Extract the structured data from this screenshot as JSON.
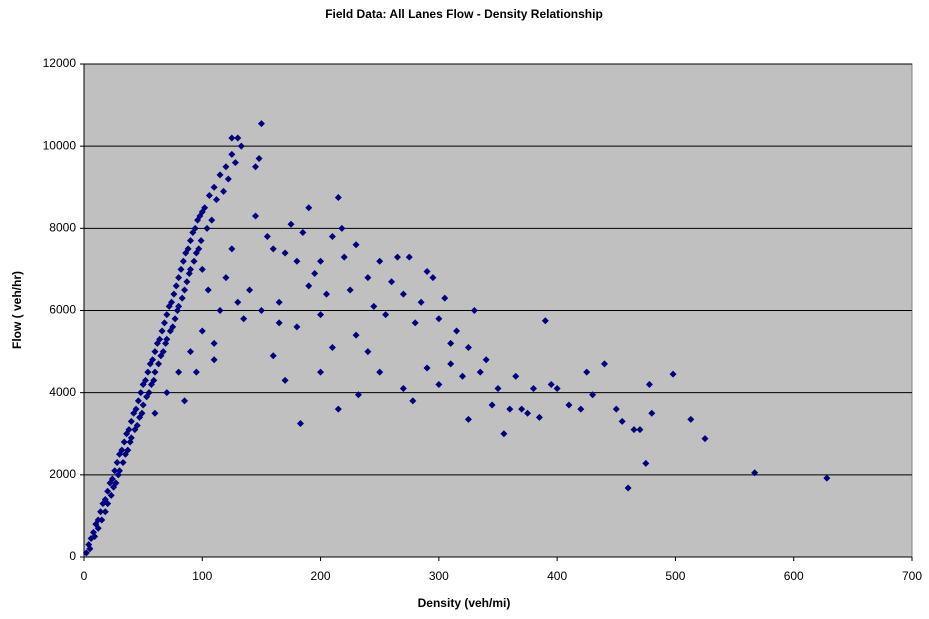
{
  "chart_data": {
    "type": "scatter",
    "title": "Field Data: All Lanes Flow - Density Relationship",
    "x_label": "Density (veh/mi)",
    "y_label": "Flow ( veh/hr)",
    "xlim": [
      0,
      700
    ],
    "xticks": [
      0,
      100,
      200,
      300,
      400,
      500,
      600,
      700
    ],
    "ylim": [
      0,
      12000
    ],
    "yticks": [
      0,
      2000,
      4000,
      6000,
      8000,
      10000,
      12000
    ],
    "grid": true,
    "background": "#c0c0c0",
    "series": [
      {
        "color": "#000080",
        "x": [
          2,
          4,
          5,
          6,
          8,
          9,
          10,
          12,
          12,
          14,
          15,
          16,
          18,
          18,
          20,
          20,
          22,
          23,
          24,
          25,
          26,
          27,
          28,
          29,
          30,
          30,
          32,
          33,
          34,
          35,
          36,
          37,
          38,
          39,
          40,
          40,
          42,
          43,
          44,
          45,
          46,
          47,
          48,
          49,
          50,
          50,
          52,
          53,
          54,
          55,
          56,
          57,
          58,
          59,
          60,
          60,
          62,
          63,
          64,
          65,
          66,
          67,
          68,
          69,
          70,
          70,
          72,
          73,
          74,
          75,
          76,
          77,
          78,
          79,
          80,
          80,
          82,
          83,
          84,
          85,
          86,
          87,
          88,
          89,
          90,
          90,
          92,
          93,
          94,
          95,
          96,
          97,
          98,
          99,
          100,
          100,
          102,
          104,
          106,
          108,
          110,
          112,
          115,
          118,
          120,
          122,
          125,
          125,
          130,
          133,
          128,
          150,
          148,
          145,
          60,
          70,
          80,
          90,
          100,
          110,
          105,
          115,
          120,
          125,
          130,
          135,
          140,
          110,
          95,
          85,
          145,
          155,
          160,
          165,
          170,
          175,
          180,
          185,
          190,
          195,
          200,
          205,
          210,
          215,
          218,
          220,
          225,
          230,
          240,
          245,
          250,
          255,
          260,
          265,
          270,
          275,
          280,
          285,
          290,
          295,
          300,
          305,
          310,
          315,
          320,
          325,
          330,
          335,
          340,
          345,
          350,
          355,
          360,
          365,
          370,
          375,
          380,
          385,
          390,
          395,
          400,
          410,
          420,
          425,
          430,
          440,
          450,
          455,
          460,
          465,
          470,
          475,
          478,
          480,
          498,
          513,
          525,
          567,
          628,
          183,
          215,
          232,
          278,
          240,
          200,
          170,
          180,
          160,
          150,
          165,
          230,
          250,
          270,
          290,
          310,
          325,
          300,
          200,
          190,
          210
        ],
        "y": [
          100,
          300,
          200,
          450,
          600,
          500,
          800,
          900,
          700,
          1100,
          900,
          1300,
          1400,
          1100,
          1600,
          1300,
          1800,
          1500,
          1900,
          1700,
          2100,
          1800,
          2300,
          2000,
          2500,
          2100,
          2600,
          2300,
          2800,
          2500,
          3000,
          2600,
          3100,
          2800,
          3300,
          2900,
          3500,
          3100,
          3600,
          3200,
          3800,
          3400,
          4000,
          3500,
          4200,
          3700,
          4300,
          3900,
          4500,
          4000,
          4700,
          4200,
          4800,
          4300,
          5000,
          4500,
          5200,
          4700,
          5300,
          4900,
          5500,
          5000,
          5700,
          5200,
          5900,
          5300,
          6100,
          5500,
          6200,
          5600,
          6400,
          5800,
          6600,
          6000,
          6800,
          6100,
          7000,
          6300,
          7200,
          6500,
          7400,
          6700,
          7500,
          6900,
          7700,
          7000,
          7900,
          7200,
          8000,
          7400,
          8200,
          7500,
          8300,
          7700,
          8400,
          7000,
          8500,
          8000,
          8800,
          8200,
          9000,
          8700,
          9300,
          8900,
          9500,
          9200,
          9800,
          10200,
          10200,
          10000,
          9600,
          10550,
          9700,
          9500,
          3500,
          4000,
          4500,
          5000,
          5500,
          5200,
          6500,
          6000,
          6800,
          7500,
          6200,
          5800,
          6500,
          4800,
          4500,
          3800,
          8300,
          7800,
          7500,
          6200,
          7400,
          8100,
          7200,
          7900,
          8500,
          6900,
          7200,
          6400,
          7800,
          8750,
          8000,
          7300,
          6500,
          7600,
          6800,
          6100,
          7200,
          5900,
          6700,
          7300,
          6400,
          7300,
          5700,
          6200,
          6950,
          6800,
          5800,
          6300,
          5200,
          5500,
          4400,
          5100,
          6000,
          4500,
          4800,
          3700,
          4100,
          3000,
          3600,
          4400,
          3600,
          3500,
          4100,
          3400,
          5750,
          4200,
          4100,
          3700,
          3600,
          4500,
          3950,
          4700,
          3600,
          3300,
          1680,
          3100,
          3100,
          2280,
          4200,
          3500,
          4450,
          3350,
          2880,
          2050,
          1920,
          3250,
          3600,
          3950,
          3800,
          5000,
          4500,
          4300,
          5600,
          4900,
          6000,
          5700,
          5400,
          4500,
          4100,
          4600,
          4700,
          3350,
          4200,
          5900,
          6600,
          5100
        ]
      }
    ]
  }
}
